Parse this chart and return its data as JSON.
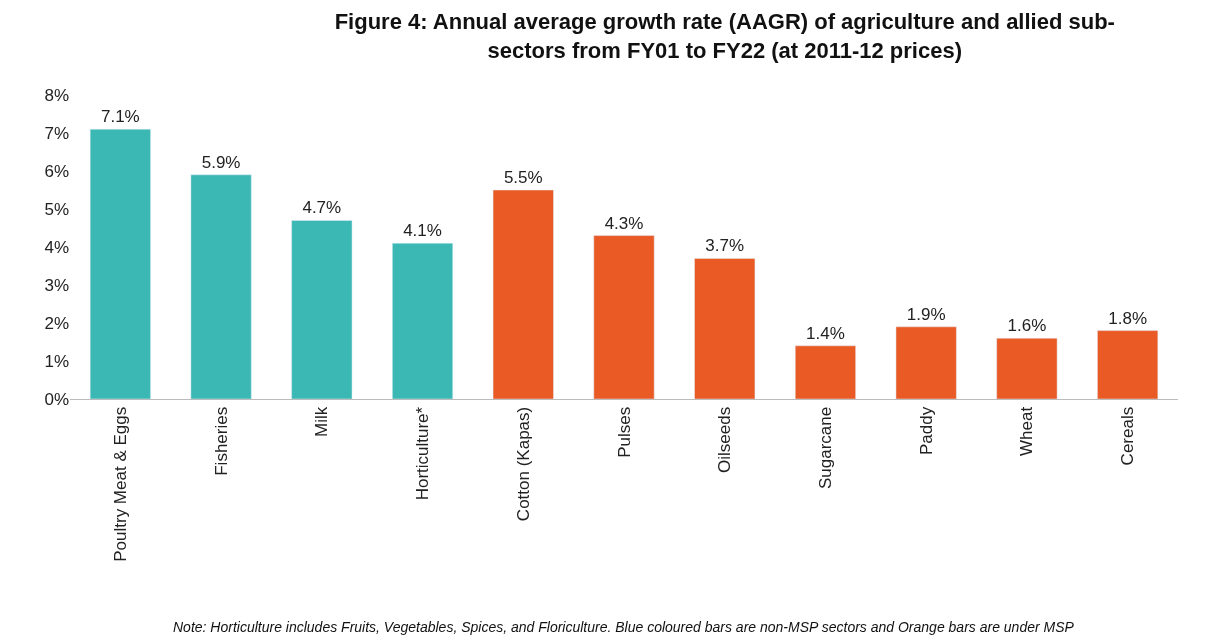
{
  "chart_data": {
    "type": "bar",
    "title": "Figure 4: Annual average growth rate (AAGR) of agriculture and allied sub-sectors from FY01 to FY22 (at 2011-12 prices)",
    "categories": [
      "Poultry Meat & Eggs",
      "Fisheries",
      "Milk",
      "Horticulture*",
      "Cotton (Kapas)",
      "Pulses",
      "Oilseeds",
      "Sugarcane",
      "Paddy",
      "Wheat",
      "Cereals"
    ],
    "values": [
      7.1,
      5.9,
      4.7,
      4.1,
      5.5,
      4.3,
      3.7,
      1.4,
      1.9,
      1.6,
      1.8
    ],
    "value_labels": [
      "7.1%",
      "5.9%",
      "4.7%",
      "4.1%",
      "5.5%",
      "4.3%",
      "3.7%",
      "1.4%",
      "1.9%",
      "1.6%",
      "1.8%"
    ],
    "colors": [
      "#3bb8b4",
      "#3bb8b4",
      "#3bb8b4",
      "#3bb8b4",
      "#e95a24",
      "#e95a24",
      "#e95a24",
      "#e95a24",
      "#e95a24",
      "#e95a24",
      "#e95a24"
    ],
    "ylim": [
      0,
      8
    ],
    "yticks": [
      {
        "value": 0,
        "label": "0%"
      },
      {
        "value": 1,
        "label": "1%"
      },
      {
        "value": 2,
        "label": "2%"
      },
      {
        "value": 3,
        "label": "3%"
      },
      {
        "value": 4,
        "label": "4%"
      },
      {
        "value": 5,
        "label": "5%"
      },
      {
        "value": 6,
        "label": "6%"
      },
      {
        "value": 7,
        "label": "7%"
      },
      {
        "value": 8,
        "label": "8%"
      }
    ],
    "grid": false,
    "legend": false,
    "annotations": [
      "Note: Horticulture includes Fruits, Vegetables, Spices, and Floriculture. Blue coloured bars are non-MSP sectors and Orange bars are under MSP"
    ]
  }
}
